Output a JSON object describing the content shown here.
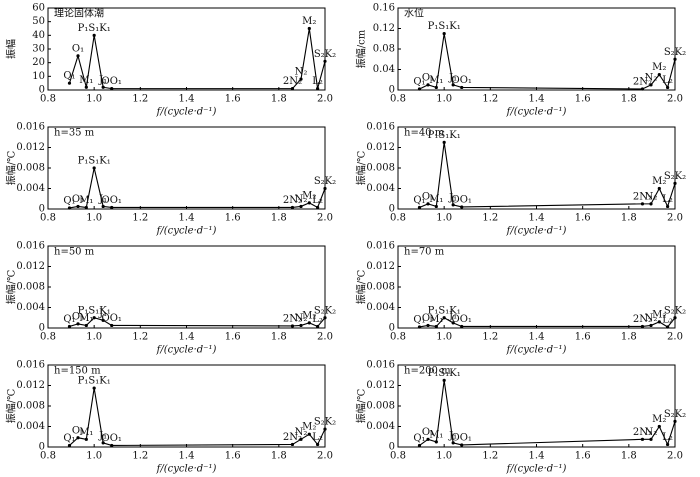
{
  "chart_data": [
    {
      "type": "line",
      "title": "理论固体潮",
      "x_label": "f/(cycle·d⁻¹)",
      "y_label": "振幅",
      "color": "#000000",
      "x": [
        0.893,
        0.93,
        0.966,
        1.0,
        1.039,
        1.076,
        1.859,
        1.896,
        1.932,
        1.968,
        2.0
      ],
      "labels": [
        "Q₁",
        "O₁",
        "M₁",
        "P₁S₁K₁",
        "J₁",
        "OO₁",
        "2N₂",
        "N₂",
        "M₂",
        "L₂",
        "S₂K₂"
      ],
      "values": [
        5,
        25,
        2,
        40,
        2,
        1,
        1,
        8,
        45,
        1,
        21
      ],
      "xlim": [
        0.8,
        2.0
      ],
      "xticks": [
        0.8,
        {
          "value": 1,
          "label": "1.0"
        },
        1.2,
        1.4,
        1.6,
        1.8,
        {
          "value": 2,
          "label": "2.0"
        }
      ],
      "ylim": [
        0,
        60
      ],
      "yticks": [
        0,
        10,
        20,
        30,
        40,
        50,
        60
      ]
    },
    {
      "type": "line",
      "title": "水位",
      "x_label": "f/(cycle·d⁻¹)",
      "y_label": "振幅/cm",
      "color": "#000000",
      "x": [
        0.893,
        0.93,
        0.966,
        1.0,
        1.039,
        1.076,
        1.859,
        1.896,
        1.932,
        1.968,
        2.0
      ],
      "labels": [
        "Q₁",
        "O₁",
        "M₁",
        "P₁S₁K₁",
        "J₁",
        "OO₁",
        "2N₂",
        "N₂",
        "M₂",
        "L₂",
        "S₂K₂"
      ],
      "values": [
        0.002,
        0.01,
        0.005,
        0.11,
        0.01,
        0.005,
        0.002,
        0.01,
        0.03,
        0.005,
        0.06
      ],
      "xlim": [
        0.8,
        2.0
      ],
      "xticks": [
        0.8,
        {
          "value": 1,
          "label": "1.0"
        },
        1.2,
        1.4,
        1.6,
        1.8,
        {
          "value": 2,
          "label": "2.0"
        }
      ],
      "ylim": [
        0,
        0.16
      ],
      "yticks": [
        0,
        0.04,
        0.08,
        0.12,
        0.16
      ]
    },
    {
      "type": "line",
      "title": "h=35 m",
      "x_label": "f/(cycle·d⁻¹)",
      "y_label": "振幅/℃",
      "color": "#000000",
      "x": [
        0.893,
        0.93,
        0.966,
        1.0,
        1.039,
        1.076,
        1.859,
        1.896,
        1.932,
        1.968,
        2.0
      ],
      "labels": [
        "Q₁",
        "O₁",
        "M₁",
        "P₁S₁K₁",
        "J₁",
        "OO₁",
        "2N₂",
        "N₂",
        "M₂",
        "L₂",
        "S₂K₂"
      ],
      "values": [
        0.0002,
        0.0005,
        0.0003,
        0.008,
        0.0005,
        0.0003,
        0.0003,
        0.0005,
        0.0012,
        0.0003,
        0.004
      ],
      "xlim": [
        0.8,
        2.0
      ],
      "xticks": [
        0.8,
        {
          "value": 1,
          "label": "1.0"
        },
        1.2,
        1.4,
        1.6,
        1.8,
        {
          "value": 2,
          "label": "2.0"
        }
      ],
      "ylim": [
        0,
        0.016
      ],
      "yticks": [
        0,
        0.004,
        0.008,
        0.012,
        0.016
      ]
    },
    {
      "type": "line",
      "title": "h=40 m",
      "x_label": "f/(cycle·d⁻¹)",
      "y_label": "振幅/℃",
      "color": "#000000",
      "x": [
        0.893,
        0.93,
        0.966,
        1.0,
        1.039,
        1.076,
        1.859,
        1.896,
        1.932,
        1.968,
        2.0
      ],
      "labels": [
        "Q₁",
        "O₁",
        "M₁",
        "P₁S₁K₁",
        "J₁",
        "OO₁",
        "2N₂",
        "N₂",
        "M₂",
        "L₂",
        "S₂K₂"
      ],
      "values": [
        0.0003,
        0.001,
        0.0005,
        0.013,
        0.0008,
        0.0004,
        0.001,
        0.001,
        0.004,
        0.0005,
        0.005
      ],
      "xlim": [
        0.8,
        2.0
      ],
      "xticks": [
        0.8,
        {
          "value": 1,
          "label": "1.0"
        },
        1.2,
        1.4,
        1.6,
        1.8,
        {
          "value": 2,
          "label": "2.0"
        }
      ],
      "ylim": [
        0,
        0.016
      ],
      "yticks": [
        0,
        0.004,
        0.008,
        0.012,
        0.016
      ]
    },
    {
      "type": "line",
      "title": "h=50 m",
      "x_label": "f/(cycle·d⁻¹)",
      "y_label": "振幅/℃",
      "color": "#000000",
      "x": [
        0.893,
        0.93,
        0.966,
        1.0,
        1.039,
        1.076,
        1.859,
        1.896,
        1.932,
        1.968,
        2.0
      ],
      "labels": [
        "Q₁",
        "O₁",
        "M₁",
        "P₁S₁K₁",
        "J₁",
        "OO₁",
        "2N₂",
        "N₂",
        "M₂",
        "L₂",
        "S₂K₂"
      ],
      "values": [
        0.0003,
        0.0008,
        0.0005,
        0.002,
        0.0015,
        0.0005,
        0.0004,
        0.0005,
        0.001,
        0.0003,
        0.002
      ],
      "xlim": [
        0.8,
        2.0
      ],
      "xticks": [
        0.8,
        {
          "value": 1,
          "label": "1.0"
        },
        1.2,
        1.4,
        1.6,
        1.8,
        {
          "value": 2,
          "label": "2.0"
        }
      ],
      "ylim": [
        0,
        0.016
      ],
      "yticks": [
        0,
        0.004,
        0.008,
        0.012,
        0.016
      ]
    },
    {
      "type": "line",
      "title": "h=70 m",
      "x_label": "f/(cycle·d⁻¹)",
      "y_label": "振幅/℃",
      "color": "#000000",
      "x": [
        0.893,
        0.93,
        0.966,
        1.0,
        1.039,
        1.076,
        1.859,
        1.896,
        1.932,
        1.968,
        2.0
      ],
      "labels": [
        "Q₁",
        "O₁",
        "M₁",
        "P₁S₁K₁",
        "J₁",
        "OO₁",
        "2N₂",
        "N₂",
        "M₂",
        "L₂",
        "S₂K₂"
      ],
      "values": [
        0.0002,
        0.0005,
        0.0003,
        0.002,
        0.001,
        0.0003,
        0.0003,
        0.0005,
        0.0012,
        0.0002,
        0.002
      ],
      "xlim": [
        0.8,
        2.0
      ],
      "xticks": [
        0.8,
        {
          "value": 1,
          "label": "1.0"
        },
        1.2,
        1.4,
        1.6,
        1.8,
        {
          "value": 2,
          "label": "2.0"
        }
      ],
      "ylim": [
        0,
        0.016
      ],
      "yticks": [
        0,
        0.004,
        0.008,
        0.012,
        0.016
      ]
    },
    {
      "type": "line",
      "title": "h=150 m",
      "x_label": "f/(cycle·d⁻¹)",
      "y_label": "振幅/℃",
      "color": "#000000",
      "x": [
        0.893,
        0.93,
        0.966,
        1.0,
        1.039,
        1.076,
        1.859,
        1.896,
        1.932,
        1.968,
        2.0
      ],
      "labels": [
        "Q₁",
        "O₁",
        "M₁",
        "P₁S₁K₁",
        "J₁",
        "OO₁",
        "2N₂",
        "N₂",
        "M₂",
        "L₂",
        "S₂K₂"
      ],
      "values": [
        0.0003,
        0.0018,
        0.0015,
        0.0115,
        0.0008,
        0.0003,
        0.0005,
        0.0015,
        0.0025,
        0.0005,
        0.0035
      ],
      "xlim": [
        0.8,
        2.0
      ],
      "xticks": [
        0.8,
        {
          "value": 1,
          "label": "1.0"
        },
        1.2,
        1.4,
        1.6,
        1.8,
        {
          "value": 2,
          "label": "2.0"
        }
      ],
      "ylim": [
        0,
        0.016
      ],
      "yticks": [
        0,
        0.004,
        0.008,
        0.012,
        0.016
      ]
    },
    {
      "type": "line",
      "title": "h=200 m",
      "x_label": "f/(cycle·d⁻¹)",
      "y_label": "振幅/℃",
      "color": "#000000",
      "x": [
        0.893,
        0.93,
        0.966,
        1.0,
        1.039,
        1.076,
        1.859,
        1.896,
        1.932,
        1.968,
        2.0
      ],
      "labels": [
        "Q₁",
        "O₁",
        "M₁",
        "P₁S₁K₁",
        "J₁",
        "OO₁",
        "2N₂",
        "N₂",
        "M₂",
        "L₂",
        "S₂K₂"
      ],
      "values": [
        0.0003,
        0.0015,
        0.001,
        0.013,
        0.0008,
        0.0004,
        0.0015,
        0.0015,
        0.004,
        0.0005,
        0.005
      ],
      "xlim": [
        0.8,
        2.0
      ],
      "xticks": [
        0.8,
        {
          "value": 1,
          "label": "1.0"
        },
        1.2,
        1.4,
        1.6,
        1.8,
        {
          "value": 2,
          "label": "2.0"
        }
      ],
      "ylim": [
        0,
        0.016
      ],
      "yticks": [
        0,
        0.004,
        0.008,
        0.012,
        0.016
      ]
    }
  ]
}
